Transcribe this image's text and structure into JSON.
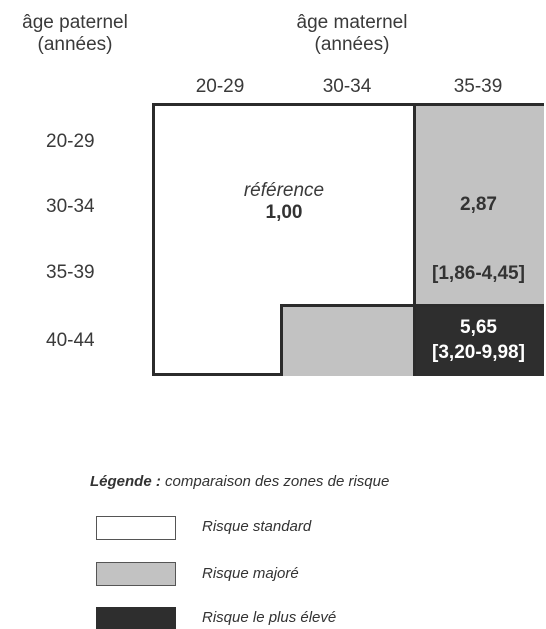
{
  "axes": {
    "paternal_label_line1": "âge paternel",
    "paternal_label_line2": "(années)",
    "maternal_label_line1": "âge maternel",
    "maternal_label_line2": "(années)"
  },
  "maternal_ages": [
    "20-29",
    "30-34",
    "35-39"
  ],
  "paternal_ages": [
    "20-29",
    "30-34",
    "35-39",
    "40-44"
  ],
  "reference": {
    "label": "référence",
    "value": "1,00"
  },
  "zone_moderate": {
    "value": "2,87",
    "ci": "[1,86-4,45]"
  },
  "zone_high": {
    "value": "5,65",
    "ci": "[3,20-9,98]"
  },
  "legend": {
    "title_bold": "Légende :",
    "title_rest": " comparaison des zones de risque",
    "items": [
      {
        "label": "Risque standard",
        "color": "#ffffff"
      },
      {
        "label": "Risque majoré",
        "color": "#c2c2c2"
      },
      {
        "label": "Risque le plus élevé",
        "color": "#2e2e2e"
      }
    ]
  },
  "colors": {
    "standard": "#ffffff",
    "moderate": "#c2c2c2",
    "high": "#2e2e2e",
    "border": "#2b2b2b"
  }
}
